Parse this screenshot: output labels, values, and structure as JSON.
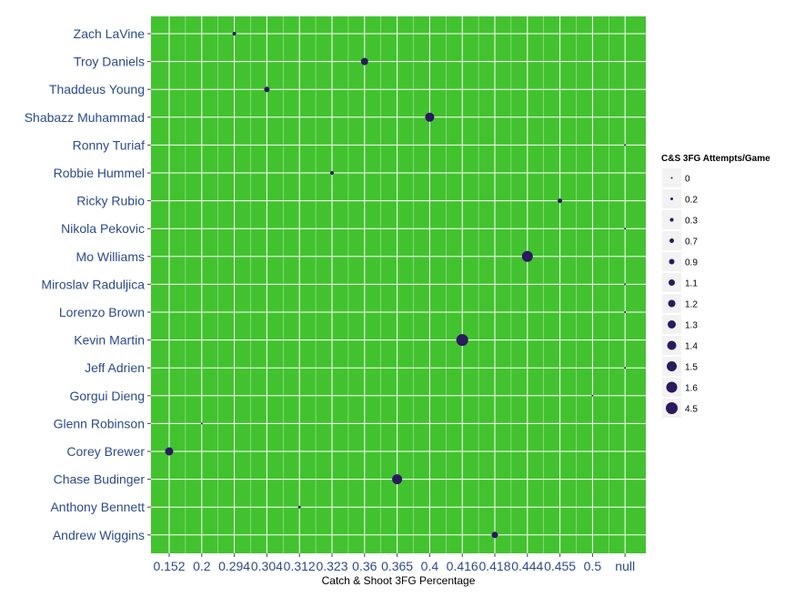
{
  "chart_data": {
    "type": "scatter",
    "xlabel": "Catch & Shoot 3FG Percentage",
    "ylabel": "",
    "x_categories": [
      "0.152",
      "0.2",
      "0.294",
      "0.304",
      "0.312",
      "0.323",
      "0.36",
      "0.365",
      "0.4",
      "0.416",
      "0.418",
      "0.444",
      "0.455",
      "0.5",
      "null"
    ],
    "y_categories": [
      "Zach LaVine",
      "Troy Daniels",
      "Thaddeus Young",
      "Shabazz Muhammad",
      "Ronny Turiaf",
      "Robbie Hummel",
      "Ricky Rubio",
      "Nikola Pekovic",
      "Mo Williams",
      "Miroslav Raduljica",
      "Lorenzo Brown",
      "Kevin Martin",
      "Jeff Adrien",
      "Gorgui Dieng",
      "Glenn Robinson",
      "Corey Brewer",
      "Chase Budinger",
      "Anthony Bennett",
      "Andrew Wiggins"
    ],
    "points": [
      {
        "player": "Zach LaVine",
        "x": "0.294",
        "size": "0.3"
      },
      {
        "player": "Troy Daniels",
        "x": "0.36",
        "size": "1.2"
      },
      {
        "player": "Thaddeus Young",
        "x": "0.304",
        "size": "0.9"
      },
      {
        "player": "Shabazz Muhammad",
        "x": "0.4",
        "size": "1.4"
      },
      {
        "player": "Ronny Turiaf",
        "x": "null",
        "size": "0"
      },
      {
        "player": "Robbie Hummel",
        "x": "0.323",
        "size": "0.3"
      },
      {
        "player": "Ricky Rubio",
        "x": "0.455",
        "size": "0.7"
      },
      {
        "player": "Nikola Pekovic",
        "x": "null",
        "size": "0"
      },
      {
        "player": "Mo Williams",
        "x": "0.444",
        "size": "1.6"
      },
      {
        "player": "Miroslav Raduljica",
        "x": "null",
        "size": "0"
      },
      {
        "player": "Lorenzo Brown",
        "x": "null",
        "size": "0"
      },
      {
        "player": "Kevin Martin",
        "x": "0.416",
        "size": "4.5"
      },
      {
        "player": "Jeff Adrien",
        "x": "null",
        "size": "0"
      },
      {
        "player": "Gorgui Dieng",
        "x": "0.5",
        "size": "0"
      },
      {
        "player": "Glenn Robinson",
        "x": "0.2",
        "size": "0"
      },
      {
        "player": "Corey Brewer",
        "x": "0.152",
        "size": "1.3"
      },
      {
        "player": "Chase Budinger",
        "x": "0.365",
        "size": "1.5"
      },
      {
        "player": "Anthony Bennett",
        "x": "0.312",
        "size": "0.2"
      },
      {
        "player": "Andrew Wiggins",
        "x": "0.418",
        "size": "1.1"
      }
    ],
    "legend": {
      "title": "C&S 3FG Attempts/Game",
      "placement": "right",
      "entries": [
        "0",
        "0.2",
        "0.3",
        "0.7",
        "0.9",
        "1.1",
        "1.2",
        "1.3",
        "1.4",
        "1.5",
        "1.6",
        "4.5"
      ]
    },
    "grid": true,
    "colors": {
      "panel": "#43c22f",
      "grid": "#ffffff",
      "point": "#2a1a5e",
      "tick_text": "#2c4a8c",
      "legend_key": "#f2f2f2"
    }
  }
}
